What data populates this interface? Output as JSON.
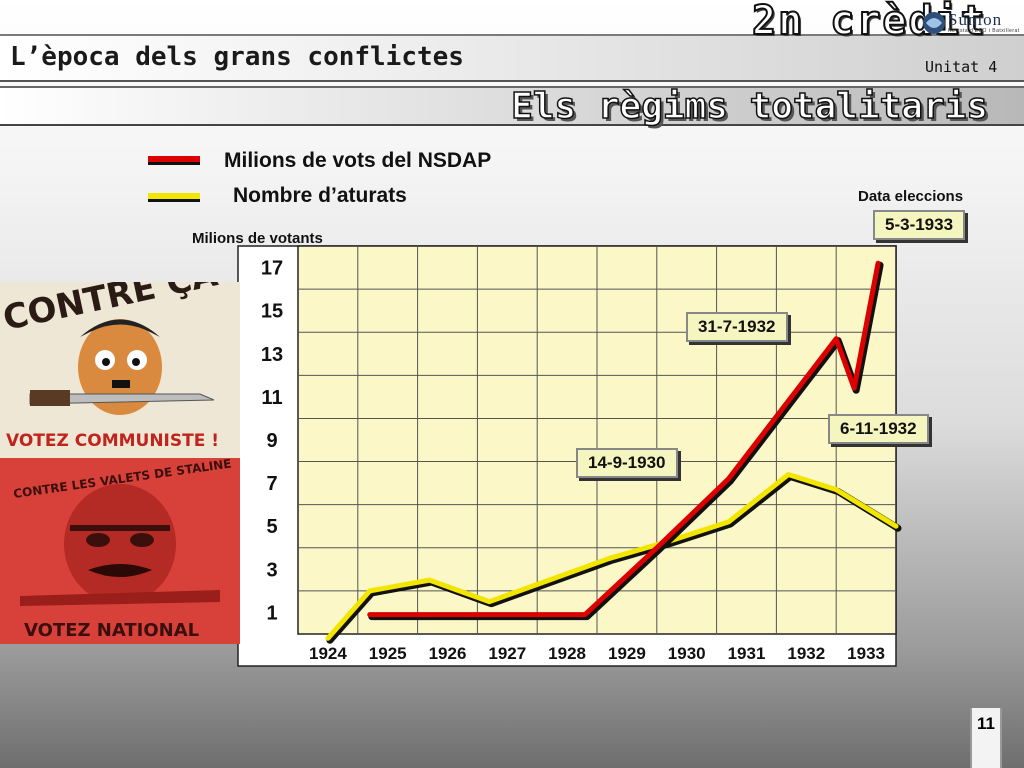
{
  "header": {
    "section_title": "L’època dels grans conflictes",
    "unit_label": "Unitat 4",
    "credit_label": "2n crèdit",
    "logo_name": "Súnion",
    "logo_sub": "Revista d'ESO i Batxillerat",
    "main_title": "Els règims totalitaris",
    "page_number": "11"
  },
  "posters": {
    "top_text_1": "CONTRE ÇA !",
    "top_text_2": "VOTEZ COMMUNISTE !",
    "bottom_text_1": "CONTRE LES VALETS DE STALINE",
    "bottom_text_2": "VOTEZ NATIONAL"
  },
  "colors": {
    "nsdap": "#dd0000",
    "unemployed": "#f2e600",
    "plot_bg": "#fbf7c6",
    "label_box": "#f5f5c0"
  },
  "chart_data": {
    "type": "line",
    "ylabel": "Milions de votants",
    "date_label": "Data eleccions",
    "categories": [
      "1924",
      "1925",
      "1926",
      "1927",
      "1928",
      "1929",
      "1930",
      "1931",
      "1932",
      "1933"
    ],
    "yticks": [
      1,
      3,
      5,
      7,
      9,
      11,
      13,
      15,
      17
    ],
    "ylim": [
      0,
      18
    ],
    "grid": true,
    "legend": "top-left",
    "series": [
      {
        "name": "Milions de vots del NSDAP",
        "color": "#dd0000",
        "points": [
          [
            1924.7,
            0.9
          ],
          [
            1928.3,
            0.9
          ],
          [
            1929.5,
            4.0
          ],
          [
            1930.7,
            7.2
          ],
          [
            1932.5,
            13.7
          ],
          [
            1932.8,
            11.4
          ],
          [
            1933.2,
            17.2
          ]
        ]
      },
      {
        "name": "Nombre d’aturats",
        "color": "#f2e600",
        "points": [
          [
            1924.0,
            -0.2
          ],
          [
            1924.7,
            2.0
          ],
          [
            1925.7,
            2.5
          ],
          [
            1926.7,
            1.5
          ],
          [
            1927.7,
            2.5
          ],
          [
            1928.7,
            3.5
          ],
          [
            1929.7,
            4.3
          ],
          [
            1930.7,
            5.2
          ],
          [
            1931.7,
            7.4
          ],
          [
            1932.5,
            6.7
          ],
          [
            1933.5,
            5.0
          ]
        ]
      }
    ],
    "annotations": [
      {
        "label": "14-9-1930",
        "x": 1930.7,
        "y": 7.2
      },
      {
        "label": "31-7-1932",
        "x": 1932.5,
        "y": 13.7
      },
      {
        "label": "6-11-1932",
        "x": 1932.8,
        "y": 11.4
      },
      {
        "label": "5-3-1933",
        "x": 1933.2,
        "y": 17.2
      }
    ]
  }
}
